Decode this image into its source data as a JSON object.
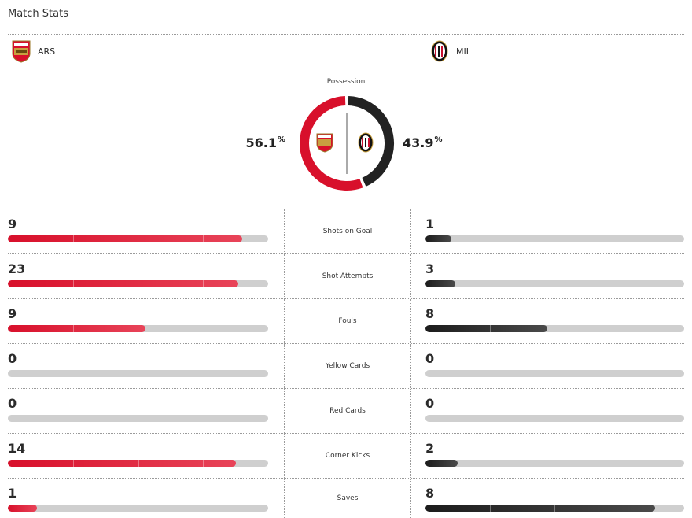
{
  "header": {
    "title": "Match Stats"
  },
  "teams": {
    "home": {
      "abbr": "ARS",
      "color": "#d8102b",
      "crest_icon": "arsenal-crest-icon"
    },
    "away": {
      "abbr": "MIL",
      "color": "#222222",
      "crest_icon": "milan-crest-icon"
    }
  },
  "possession": {
    "label": "Possession",
    "home": 56.1,
    "away": 43.9,
    "home_text": "56.1",
    "away_text": "43.9",
    "unit": "%"
  },
  "stats": [
    {
      "label": "Shots on Goal",
      "home": 9,
      "away": 1
    },
    {
      "label": "Shot Attempts",
      "home": 23,
      "away": 3
    },
    {
      "label": "Fouls",
      "home": 9,
      "away": 8
    },
    {
      "label": "Yellow Cards",
      "home": 0,
      "away": 0
    },
    {
      "label": "Red Cards",
      "home": 0,
      "away": 0
    },
    {
      "label": "Corner Kicks",
      "home": 14,
      "away": 2
    },
    {
      "label": "Saves",
      "home": 1,
      "away": 8
    }
  ]
}
